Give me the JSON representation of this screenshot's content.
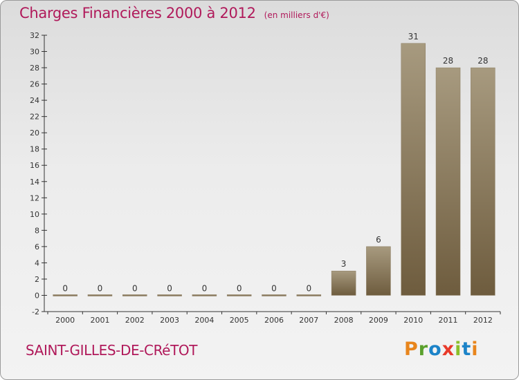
{
  "header": {
    "title": "Charges Financières 2000 à 2012",
    "subtitle": "(en milliers d'€)"
  },
  "footer": {
    "commune": "SAINT-GILLES-DE-CRéTOT",
    "brand": {
      "letters": [
        "P",
        "r",
        "o",
        "x",
        "i",
        "t",
        "i"
      ],
      "colors": [
        "#e8851c",
        "#5aa02c",
        "#1c83c8",
        "#e83a2a",
        "#8bbf2a",
        "#1c83c8",
        "#e8851c"
      ]
    }
  },
  "colors": {
    "title": "#b0195a",
    "bar_light": "#a79a7f",
    "bar_dark": "#6e5c3e",
    "axis": "#333333"
  },
  "chart_data": {
    "type": "bar",
    "categories": [
      "2000",
      "2001",
      "2002",
      "2003",
      "2004",
      "2005",
      "2006",
      "2007",
      "2008",
      "2009",
      "2010",
      "2011",
      "2012"
    ],
    "values": [
      0,
      0,
      0,
      0,
      0,
      0,
      0,
      0,
      3,
      6,
      31,
      28,
      28
    ],
    "data_labels": [
      "0",
      "0",
      "0",
      "0",
      "0",
      "0",
      "0",
      "0",
      "3",
      "6",
      "31",
      "28",
      "28"
    ],
    "ylim": [
      -2,
      32
    ],
    "yticks": [
      "-2",
      "0",
      "2",
      "4",
      "6",
      "8",
      "10",
      "12",
      "14",
      "16",
      "18",
      "20",
      "22",
      "24",
      "26",
      "28",
      "30",
      "32"
    ],
    "grid": false,
    "legend": "none"
  }
}
